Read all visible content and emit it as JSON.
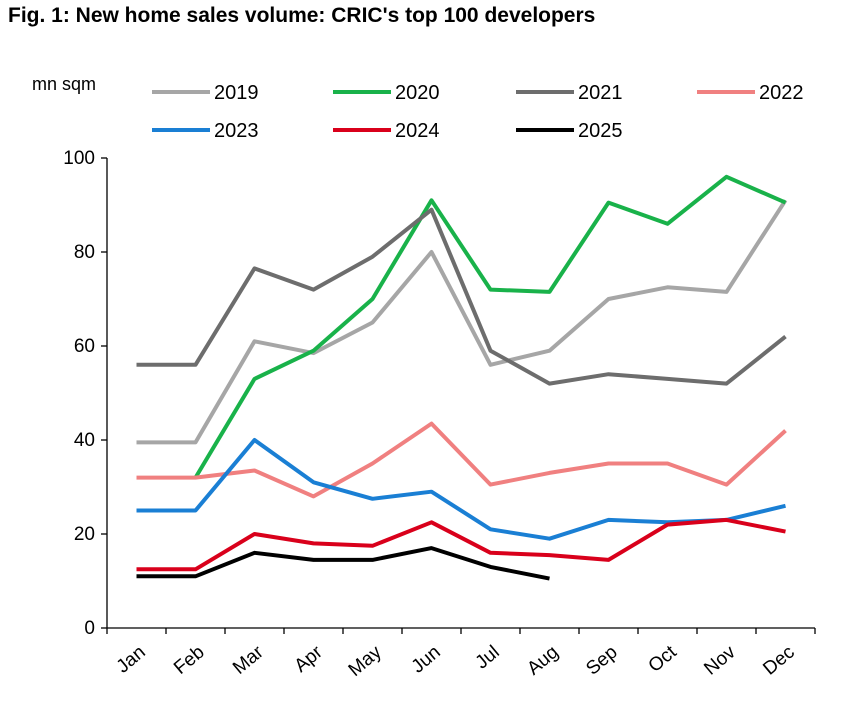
{
  "chart_data": {
    "type": "line",
    "title": "Fig. 1: New home sales volume: CRIC's top 100 developers",
    "ylabel": "mn sqm",
    "xlabel": "",
    "ylim": [
      0,
      100
    ],
    "yticks": [
      0,
      20,
      40,
      60,
      80,
      100
    ],
    "categories": [
      "Jan",
      "Feb",
      "Mar",
      "Apr",
      "May",
      "Jun",
      "Jul",
      "Aug",
      "Sep",
      "Oct",
      "Nov",
      "Dec"
    ],
    "legend_position": "top",
    "grid": false,
    "series": [
      {
        "name": "2019",
        "color": "#a6a6a6",
        "values": [
          39.5,
          39.5,
          61,
          58.5,
          65,
          80,
          56,
          59,
          70,
          72.5,
          71.5,
          91
        ]
      },
      {
        "name": "2020",
        "color": "#19b24a",
        "values": [
          null,
          32,
          53,
          59,
          70,
          91,
          72,
          71.5,
          90.5,
          86,
          96,
          90.5
        ]
      },
      {
        "name": "2021",
        "color": "#6d6d6d",
        "values": [
          56,
          56,
          76.5,
          72,
          79,
          89,
          59,
          52,
          54,
          53,
          52,
          62
        ]
      },
      {
        "name": "2022",
        "color": "#f08080",
        "values": [
          32,
          32,
          33.5,
          28,
          35,
          43.5,
          30.5,
          33,
          35,
          35,
          30.5,
          42
        ]
      },
      {
        "name": "2023",
        "color": "#1a7fd4",
        "values": [
          25,
          25,
          40,
          31,
          27.5,
          29,
          21,
          19,
          23,
          22.5,
          23,
          26
        ]
      },
      {
        "name": "2024",
        "color": "#d9001b",
        "values": [
          12.5,
          12.5,
          20,
          18,
          17.5,
          22.5,
          16,
          15.5,
          14.5,
          22,
          23,
          20.5
        ]
      },
      {
        "name": "2025",
        "color": "#000000",
        "values": [
          11,
          11,
          16,
          14.5,
          14.5,
          17,
          13,
          10.5,
          null,
          null,
          null,
          null
        ]
      }
    ]
  }
}
